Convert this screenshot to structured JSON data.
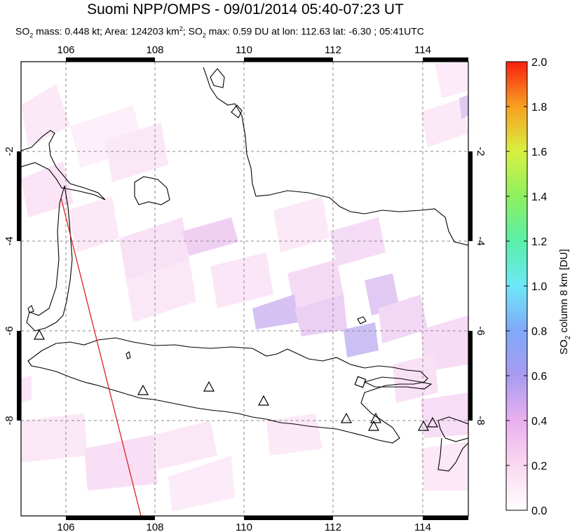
{
  "title": "Suomi NPP/OMPS - 09/01/2014 05:40-07:23 UT",
  "subtitle": {
    "so2_mass_label": "SO",
    "so2_mass_text": " mass: 0.448 kt; Area: 124203 km",
    "area_sup": "2",
    "so2_max_label": "; SO",
    "so2_max_text": " max: 0.59 DU at lon: 112.63 lat: -6.30 ; 05:41UTC",
    "sub2": "2"
  },
  "map": {
    "lon_range": [
      105.0,
      115.0
    ],
    "lat_range": [
      -10.0,
      -1.0
    ],
    "lon_ticks": [
      "106",
      "108",
      "110",
      "112",
      "114"
    ],
    "lat_ticks": [
      "-2",
      "-4",
      "-6",
      "-8"
    ],
    "colors": {
      "coast": "#000000",
      "grid": "#888888",
      "swath_edge": "#e02020",
      "frame": "#000000"
    }
  },
  "volcanoes": [
    {
      "lon": 105.42,
      "lat": -6.1
    },
    {
      "lon": 107.73,
      "lat": -7.32
    },
    {
      "lon": 109.21,
      "lat": -7.24
    },
    {
      "lon": 110.44,
      "lat": -7.54
    },
    {
      "lon": 112.31,
      "lat": -7.94
    },
    {
      "lon": 112.92,
      "lat": -8.11
    },
    {
      "lon": 112.95,
      "lat": -7.94
    },
    {
      "lon": 114.04,
      "lat": -8.13
    },
    {
      "lon": 114.24,
      "lat": -8.06
    }
  ],
  "colorbar": {
    "ticks": [
      "0.0",
      "0.2",
      "0.4",
      "0.6",
      "0.8",
      "1.0",
      "1.2",
      "1.4",
      "1.6",
      "1.8",
      "2.0"
    ],
    "label_main": "SO",
    "label_sub": "2",
    "label_rest": " column 8 km [DU]",
    "range": [
      0.0,
      2.0
    ]
  }
}
